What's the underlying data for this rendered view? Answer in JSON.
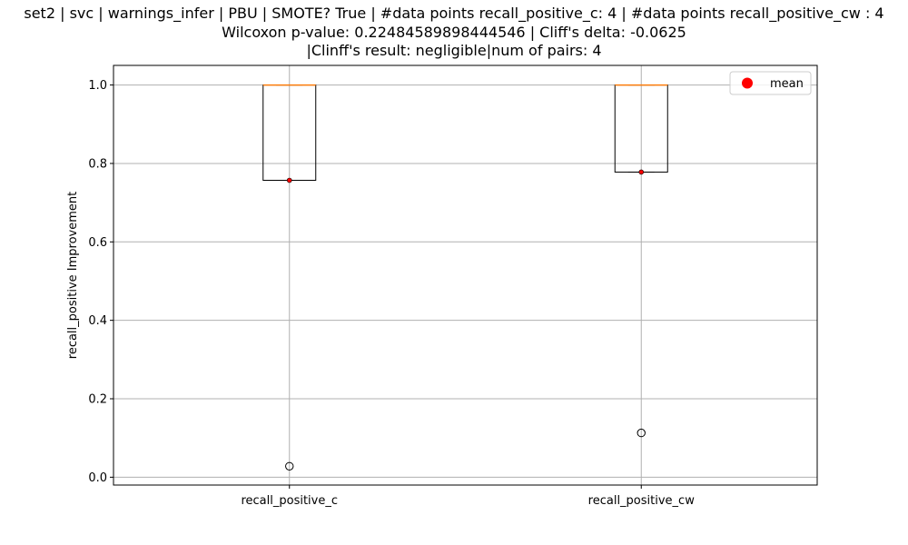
{
  "chart_data": {
    "type": "box",
    "title_lines": [
      "set2 | svc | warnings_infer | PBU | SMOTE? True | #data points recall_positive_c: 4 | #data points recall_positive_cw : 4",
      "Wilcoxon p-value: 0.22484589898444546 | Cliff's delta: -0.0625",
      "|Clinff's result: negligible|num of pairs: 4"
    ],
    "xlabel": "",
    "ylabel": "recall_positive Improvement",
    "ylim": [
      -0.02,
      1.05
    ],
    "yticks": [
      0.0,
      0.2,
      0.4,
      0.6,
      0.8,
      1.0
    ],
    "ytick_labels": [
      "0.0",
      "0.2",
      "0.4",
      "0.6",
      "0.8",
      "1.0"
    ],
    "categories": [
      "recall_positive_c",
      "recall_positive_cw"
    ],
    "boxes": [
      {
        "name": "recall_positive_c",
        "q1": 0.757,
        "median": 1.0,
        "q3": 1.0,
        "whisker_low": 0.757,
        "whisker_high": 1.0,
        "mean": 0.757,
        "outliers": [
          0.028
        ]
      },
      {
        "name": "recall_positive_cw",
        "q1": 0.778,
        "median": 1.0,
        "q3": 1.0,
        "whisker_low": 0.778,
        "whisker_high": 1.0,
        "mean": 0.778,
        "outliers": [
          0.113
        ]
      }
    ],
    "legend": {
      "entries": [
        {
          "label": "mean",
          "marker": "circle",
          "color": "#ff0000"
        }
      ],
      "position": "upper right"
    },
    "grid": true,
    "colors": {
      "box": "#000000",
      "median": "#ff7f0e",
      "mean": "#ff0000",
      "grid": "#b0b0b0"
    }
  }
}
